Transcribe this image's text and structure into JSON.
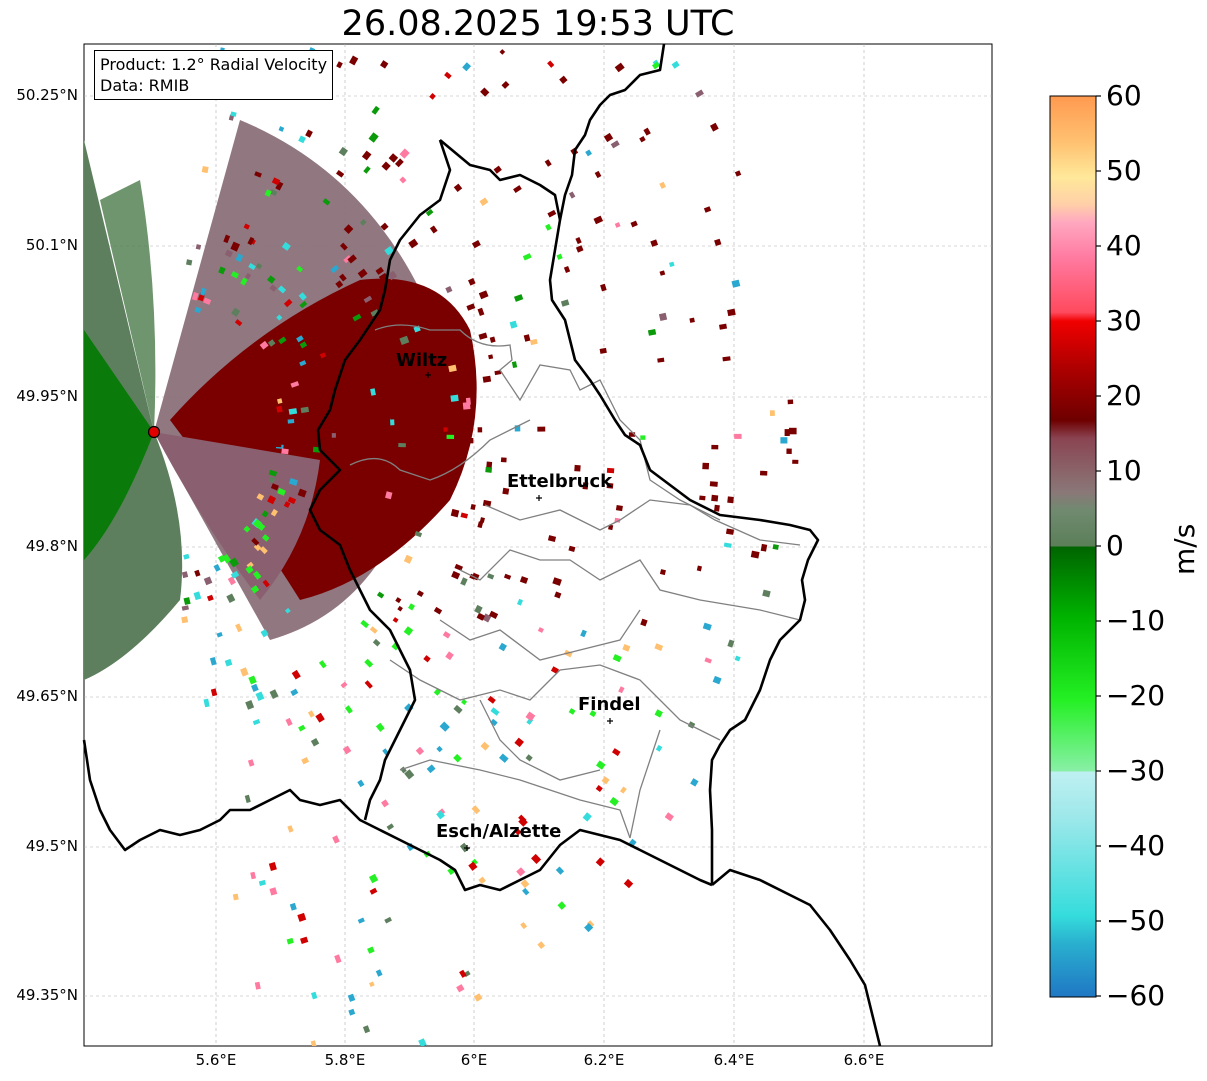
{
  "title": "26.08.2025 19:53 UTC",
  "info_box": {
    "product": "Product: 1.2° Radial Velocity",
    "data": "Data: RMIB"
  },
  "lat_labels": [
    "50.25°N",
    "50.1°N",
    "49.95°N",
    "49.8°N",
    "49.65°N",
    "49.5°N",
    "49.35°N"
  ],
  "lon_labels": [
    "5.6°E",
    "5.8°E",
    "6°E",
    "6.2°E",
    "6.4°E",
    "6.6°E"
  ],
  "cities": [
    {
      "name": "Wiltz"
    },
    {
      "name": "Ettelbruck"
    },
    {
      "name": "Findel"
    },
    {
      "name": "Esch/Alzette"
    }
  ],
  "colorbar": {
    "unit": "m/s",
    "ticks": [
      "60",
      "50",
      "40",
      "30",
      "20",
      "10",
      "0",
      "−10",
      "−20",
      "−30",
      "−40",
      "−50",
      "−60"
    ],
    "min": -60,
    "max": 60
  },
  "colors": {
    "gate_outbound_strong": "#7a0000",
    "gate_outbound_weak": "#8a6069",
    "gate_inbound_weak": "#5e7f5e",
    "gate_inbound_strong": "#0a7a0a",
    "border_country": "#000000",
    "border_canton": "#808080",
    "radar_site": "#e00000"
  }
}
